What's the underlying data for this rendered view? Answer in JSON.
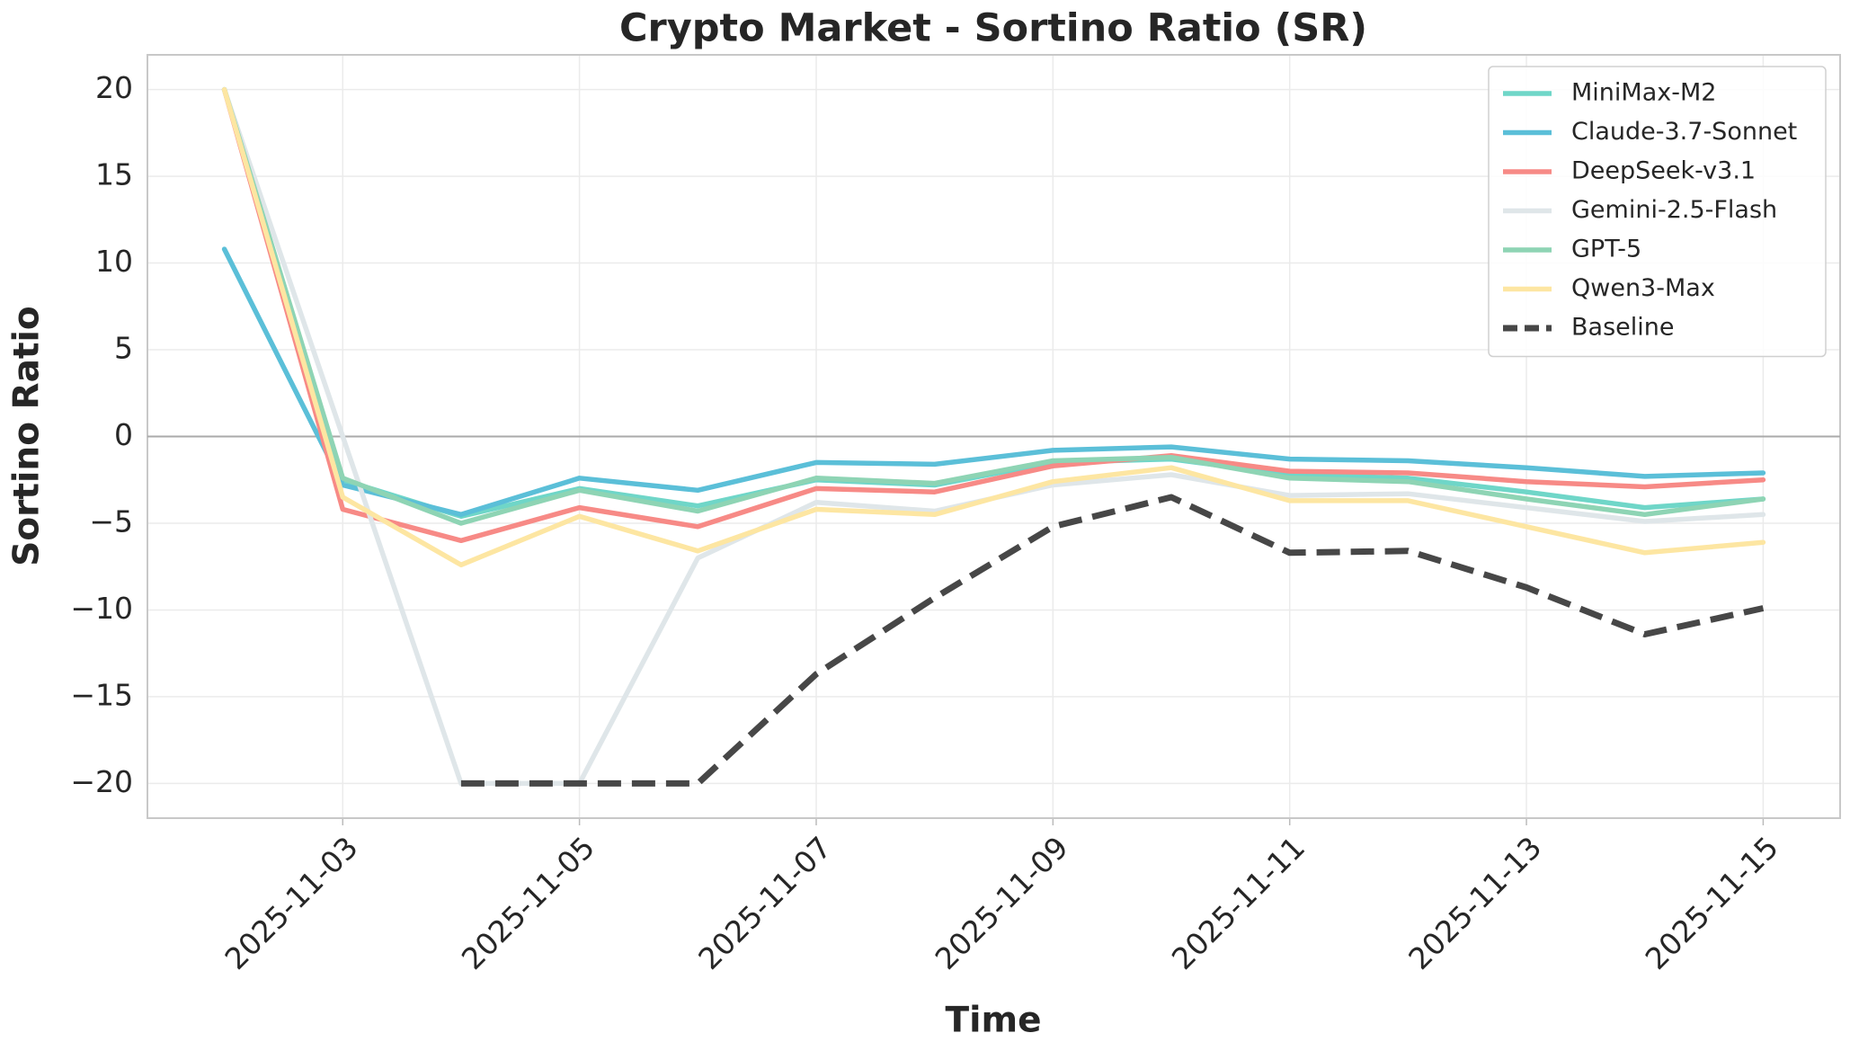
{
  "chart_data": {
    "type": "line",
    "title": "Crypto Market - Sortino Ratio (SR)",
    "x_label": "Time",
    "y_label": "Sortino Ratio",
    "x": [
      "2025-11-02",
      "2025-11-03",
      "2025-11-04",
      "2025-11-05",
      "2025-11-06",
      "2025-11-07",
      "2025-11-08",
      "2025-11-09",
      "2025-11-10",
      "2025-11-11",
      "2025-11-12",
      "2025-11-13",
      "2025-11-14",
      "2025-11-15"
    ],
    "series": [
      {
        "name": "MiniMax-M2",
        "color": "#6fd6c8",
        "dashed": false,
        "values": [
          20,
          -2.5,
          -4.6,
          -3.0,
          -4.0,
          -2.5,
          -2.8,
          -1.5,
          -1.3,
          -2.2,
          -2.4,
          -3.2,
          -4.1,
          -3.6
        ]
      },
      {
        "name": "Claude-3.7-Sonnet",
        "color": "#5bbfd8",
        "dashed": false,
        "values": [
          10.8,
          -2.8,
          -4.5,
          -2.4,
          -3.1,
          -1.5,
          -1.6,
          -0.8,
          -0.6,
          -1.3,
          -1.4,
          -1.8,
          -2.3,
          -2.1
        ]
      },
      {
        "name": "DeepSeek-v3.1",
        "color": "#f78a86",
        "dashed": false,
        "values": [
          20,
          -4.2,
          -6.0,
          -4.1,
          -5.2,
          -3.0,
          -3.2,
          -1.7,
          -1.1,
          -2.0,
          -2.1,
          -2.6,
          -2.9,
          -2.5
        ]
      },
      {
        "name": "Gemini-2.5-Flash",
        "color": "#dfe6e9",
        "dashed": false,
        "values": [
          20,
          0,
          -20,
          -20,
          -7,
          -3.8,
          -4.3,
          -2.8,
          -2.2,
          -3.4,
          -3.3,
          -4.1,
          -4.9,
          -4.5
        ]
      },
      {
        "name": "GPT-5",
        "color": "#8ed4b4",
        "dashed": false,
        "values": [
          20,
          -2.4,
          -5.0,
          -3.1,
          -4.3,
          -2.4,
          -2.7,
          -1.4,
          -1.2,
          -2.4,
          -2.6,
          -3.6,
          -4.5,
          -3.6
        ]
      },
      {
        "name": "Qwen3-Max",
        "color": "#fde6a2",
        "dashed": false,
        "values": [
          20,
          -3.5,
          -7.4,
          -4.6,
          -6.6,
          -4.2,
          -4.5,
          -2.6,
          -1.8,
          -3.7,
          -3.7,
          -5.2,
          -6.7,
          -6.1
        ]
      },
      {
        "name": "Baseline",
        "color": "#474747",
        "dashed": true,
        "values": [
          null,
          null,
          -20,
          -20,
          -20,
          -13.7,
          -9.3,
          -5.2,
          -3.5,
          -6.7,
          -6.6,
          -8.7,
          -11.4,
          -9.9
        ]
      }
    ],
    "reference_line": 0,
    "ylim": [
      -22,
      22
    ],
    "yticks": [
      {
        "value": -20,
        "label": "−20"
      },
      {
        "value": -15,
        "label": "−15"
      },
      {
        "value": -10,
        "label": "−10"
      },
      {
        "value": -5,
        "label": "−5"
      },
      0,
      5,
      10,
      15,
      20
    ],
    "xticks": [
      "2025-11-03",
      "2025-11-05",
      "2025-11-07",
      "2025-11-09",
      "2025-11-11",
      "2025-11-13",
      "2025-11-15"
    ],
    "grid": true,
    "legend_position": "upper right"
  }
}
